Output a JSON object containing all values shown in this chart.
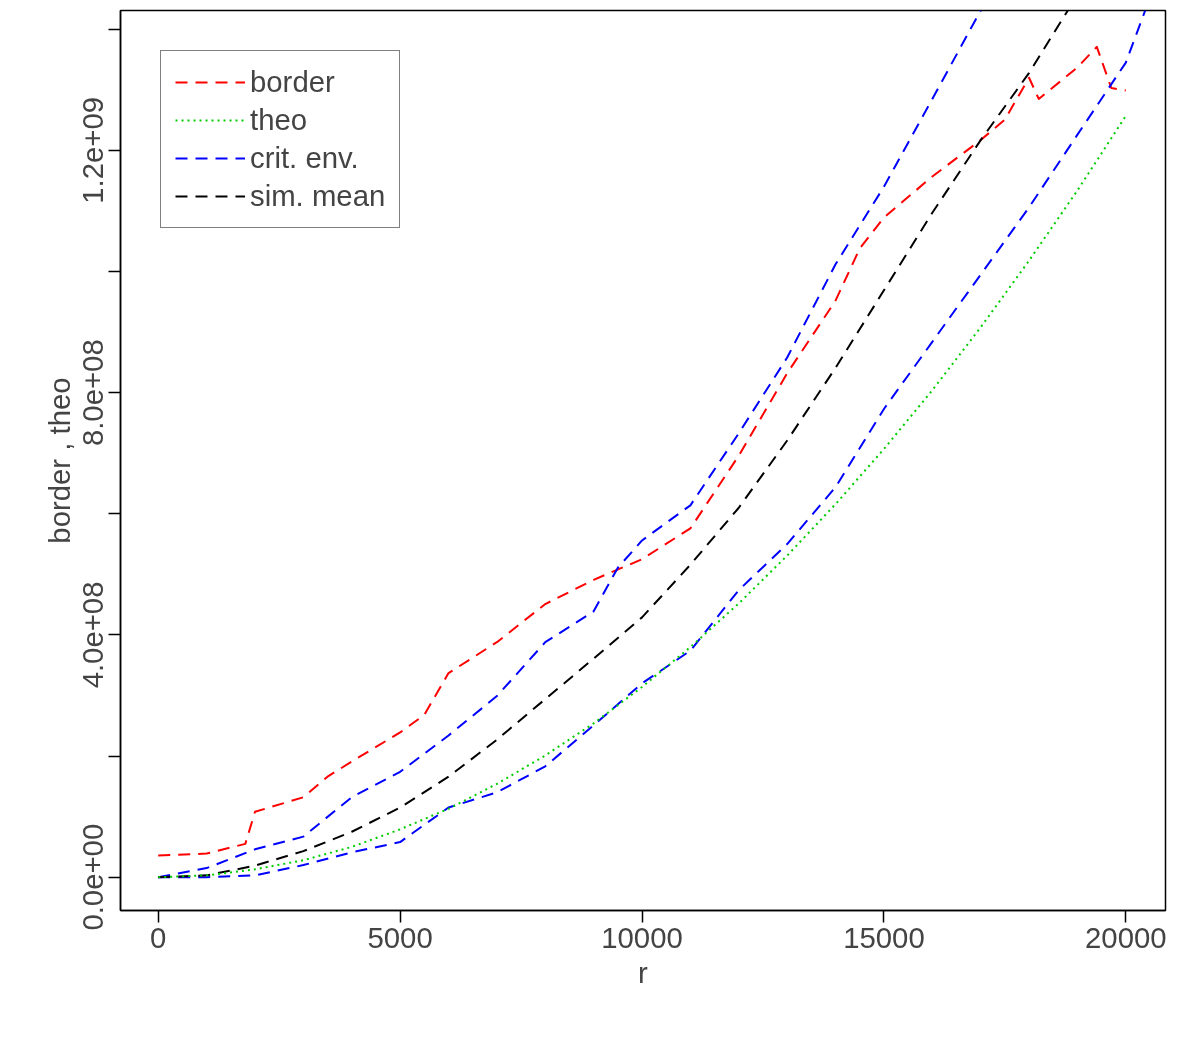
{
  "chart_data": {
    "type": "line",
    "xlabel": "r",
    "ylabel": "border , theo",
    "xlim": [
      -780,
      20820
    ],
    "ylim": [
      -55000000,
      1431000000
    ],
    "xticks": [
      0,
      5000,
      10000,
      15000,
      20000
    ],
    "yticks": [
      {
        "value": 0,
        "label": "0.0e+00"
      },
      {
        "value": 200000000,
        "label": null
      },
      {
        "value": 400000000,
        "label": "4.0e+08"
      },
      {
        "value": 600000000,
        "label": null
      },
      {
        "value": 800000000,
        "label": "8.0e+08"
      },
      {
        "value": 1000000000,
        "label": null
      },
      {
        "value": 1200000000,
        "label": "1.2e+09"
      },
      {
        "value": 1400000000,
        "label": null
      }
    ],
    "grid": false,
    "legend": "top left",
    "marker": "none",
    "series": [
      {
        "name": "border",
        "color": "#ff0000",
        "line_style": "dashed",
        "x": [
          0,
          1000,
          1800,
          2000,
          3000,
          3500,
          4000,
          5000,
          5500,
          6000,
          7000,
          8000,
          9000,
          10000,
          11000,
          12000,
          13000,
          14000,
          14500,
          15000,
          16000,
          17000,
          17500,
          18000,
          18200,
          19000,
          19400,
          19700,
          20000
        ],
        "values": [
          36000000,
          39000000,
          55000000,
          108000000,
          132000000,
          166000000,
          191000000,
          239000000,
          268000000,
          337000000,
          388000000,
          451000000,
          491000000,
          525000000,
          576000000,
          696000000,
          832000000,
          952000000,
          1038000000,
          1089000000,
          1157000000,
          1217000000,
          1251000000,
          1320000000,
          1285000000,
          1337000000,
          1371000000,
          1303000000,
          1299000000
        ]
      },
      {
        "name": "theo",
        "color": "#00cd00",
        "line_style": "dotted",
        "x": [
          0,
          1000,
          2000,
          3000,
          4000,
          5000,
          6000,
          7000,
          8000,
          9000,
          10000,
          11000,
          12000,
          13000,
          14000,
          15000,
          16000,
          17000,
          18000,
          19000,
          20000
        ],
        "values": [
          0,
          3000000,
          13000000,
          28000000,
          50000000,
          79000000,
          113000000,
          154000000,
          201000000,
          254000000,
          314000000,
          380000000,
          452000000,
          531000000,
          616000000,
          707000000,
          804000000,
          908000000,
          1018000000,
          1134000000,
          1257000000
        ]
      },
      {
        "name": "crit. env.",
        "color": "#0000ff",
        "line_style": "dashed",
        "x": [
          0,
          1000,
          2000,
          3000,
          4000,
          5000,
          6000,
          7000,
          8000,
          9000,
          9500,
          10000,
          11000,
          12000,
          13000,
          14000,
          15000,
          16000,
          17000
        ],
        "values": [
          0,
          15000000,
          46000000,
          67000000,
          132000000,
          174000000,
          234000000,
          299000000,
          388000000,
          439000000,
          511000000,
          556000000,
          614000000,
          733000000,
          858000000,
          1012000000,
          1140000000,
          1285000000,
          1431000000
        ]
      },
      {
        "color": "#0000ff",
        "line_style": "dashed",
        "x": [
          0,
          1000,
          2000,
          3000,
          4000,
          5000,
          6000,
          7000,
          8000,
          9000,
          10000,
          11000,
          12000,
          13000,
          14000,
          15000,
          16000,
          17000,
          18000,
          19000,
          20000,
          20400
        ],
        "values": [
          0,
          0,
          3000000,
          20000000,
          41000000,
          58000000,
          115000000,
          140000000,
          183000000,
          251000000,
          320000000,
          374000000,
          474000000,
          550000000,
          644000000,
          773000000,
          884000000,
          995000000,
          1106000000,
          1226000000,
          1345000000,
          1431000000
        ]
      },
      {
        "name": "sim. mean",
        "color": "#000000",
        "line_style": "dashed",
        "x": [
          0,
          1000,
          2000,
          3000,
          4000,
          5000,
          6000,
          7000,
          8000,
          9000,
          10000,
          11000,
          12000,
          13000,
          14000,
          15000,
          16000,
          17000,
          18000,
          18800
        ],
        "values": [
          0,
          3000000,
          19000000,
          43000000,
          75000000,
          115000000,
          166000000,
          227000000,
          294000000,
          361000000,
          429000000,
          516000000,
          610000000,
          721000000,
          841000000,
          969000000,
          1097000000,
          1217000000,
          1328000000,
          1431000000
        ]
      }
    ]
  }
}
